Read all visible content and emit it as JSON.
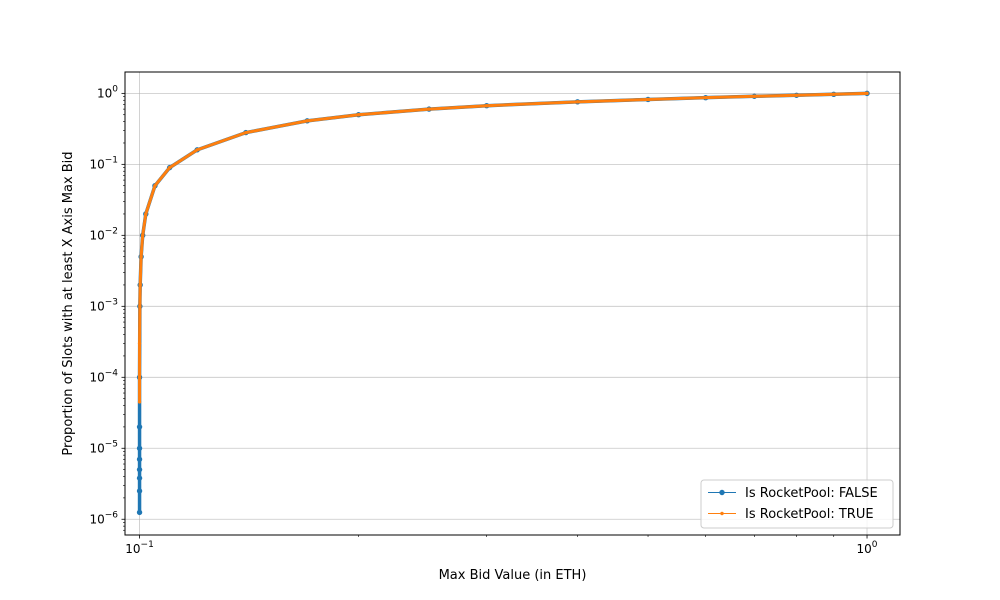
{
  "chart_data": {
    "type": "line",
    "title": "",
    "xlabel": "Max Bid Value (in ETH)",
    "ylabel": "Proportion of Slots with at least X Axis Max Bid",
    "xscale": "log",
    "yscale": "log",
    "xlim": [
      0.0955,
      1.11
    ],
    "ylim": [
      6e-07,
      2
    ],
    "grid": true,
    "legend_position": "lower-right",
    "x_ticks": [
      {
        "value": 0.1,
        "base": "10",
        "exp": "−1"
      },
      {
        "value": 1,
        "base": "10",
        "exp": "0"
      }
    ],
    "y_ticks": [
      {
        "value": 1e-06,
        "base": "10",
        "exp": "−6"
      },
      {
        "value": 1e-05,
        "base": "10",
        "exp": "−5"
      },
      {
        "value": 0.0001,
        "base": "10",
        "exp": "−4"
      },
      {
        "value": 0.001,
        "base": "10",
        "exp": "−3"
      },
      {
        "value": 0.01,
        "base": "10",
        "exp": "−2"
      },
      {
        "value": 0.1,
        "base": "10",
        "exp": "−1"
      },
      {
        "value": 1,
        "base": "10",
        "exp": "0"
      }
    ],
    "series": [
      {
        "name": "Is RocketPool: FALSE",
        "color": "#1f77b4",
        "marker_radius": 2.7,
        "x": [
          0.1,
          0.1,
          0.1,
          0.1,
          0.1,
          0.1,
          0.1,
          0.1,
          0.1001,
          0.1002,
          0.1005,
          0.101,
          0.102,
          0.105,
          0.11,
          0.12,
          0.14,
          0.17,
          0.2,
          0.25,
          0.3,
          0.4,
          0.5,
          0.6,
          0.7,
          0.8,
          0.9,
          1.0
        ],
        "y": [
          1.25e-06,
          2.5e-06,
          3.8e-06,
          5e-06,
          7e-06,
          1e-05,
          2e-05,
          0.0001,
          0.001,
          0.002,
          0.005,
          0.01,
          0.02,
          0.05,
          0.09,
          0.16,
          0.28,
          0.41,
          0.5,
          0.6,
          0.67,
          0.76,
          0.82,
          0.87,
          0.91,
          0.94,
          0.97,
          1.0
        ]
      },
      {
        "name": "Is RocketPool: TRUE",
        "color": "#ff7f0e",
        "marker_radius": 1.7,
        "x": [
          0.1,
          0.1,
          0.1,
          0.1001,
          0.1002,
          0.1005,
          0.101,
          0.102,
          0.105,
          0.11,
          0.12,
          0.14,
          0.17,
          0.2,
          0.25,
          0.3,
          0.4,
          0.5,
          0.6,
          0.7,
          0.8,
          0.9,
          1.0
        ],
        "y": [
          4.5e-05,
          0.0001,
          0.0003,
          0.001,
          0.002,
          0.005,
          0.01,
          0.02,
          0.05,
          0.09,
          0.16,
          0.28,
          0.41,
          0.5,
          0.6,
          0.67,
          0.76,
          0.82,
          0.87,
          0.91,
          0.94,
          0.97,
          1.0
        ]
      }
    ]
  }
}
